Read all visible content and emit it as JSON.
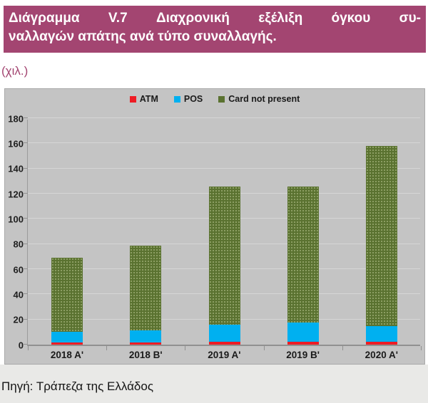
{
  "banner": {
    "line1": "Διάγραμμα V.7 Διαχρονική εξέλιξη όγκου συ-",
    "line2": "ναλλαγών απάτης ανά τύπο συναλλαγής.",
    "bg_color": "#a34571",
    "text_color": "#ffffff"
  },
  "units_label": "(χιλ.)",
  "source_note": "Πηγή: Τράπεζα της Ελλάδος",
  "chart_data": {
    "type": "bar",
    "stacked": true,
    "title": "",
    "xlabel": "",
    "ylabel": "(χιλ.)",
    "categories": [
      "2018 Α'",
      "2018 Β'",
      "2019 Α'",
      "2019 Β'",
      "2020 Α'"
    ],
    "series": [
      {
        "name": "ATM",
        "color": "#ee1c24",
        "pattern": "solid",
        "values": [
          1.5,
          1.5,
          2.5,
          2.0,
          2.0
        ]
      },
      {
        "name": "POS",
        "color": "#00b0f0",
        "pattern": "solid",
        "values": [
          8.5,
          10.0,
          13.5,
          15.5,
          13.0
        ]
      },
      {
        "name": "Card not present",
        "color": "#5a7230",
        "pattern": "dots",
        "values": [
          59.0,
          67.0,
          109.5,
          108.0,
          143.0
        ]
      }
    ],
    "totals": [
      69,
      78.5,
      125.5,
      125.5,
      158
    ],
    "ylim": [
      0,
      180
    ],
    "ytick_step": 20,
    "grid": true,
    "legend_position": "top-center",
    "plot_bg": "#c4c4c4",
    "grid_color": "#d6d6d6",
    "axis_color": "#919191"
  }
}
